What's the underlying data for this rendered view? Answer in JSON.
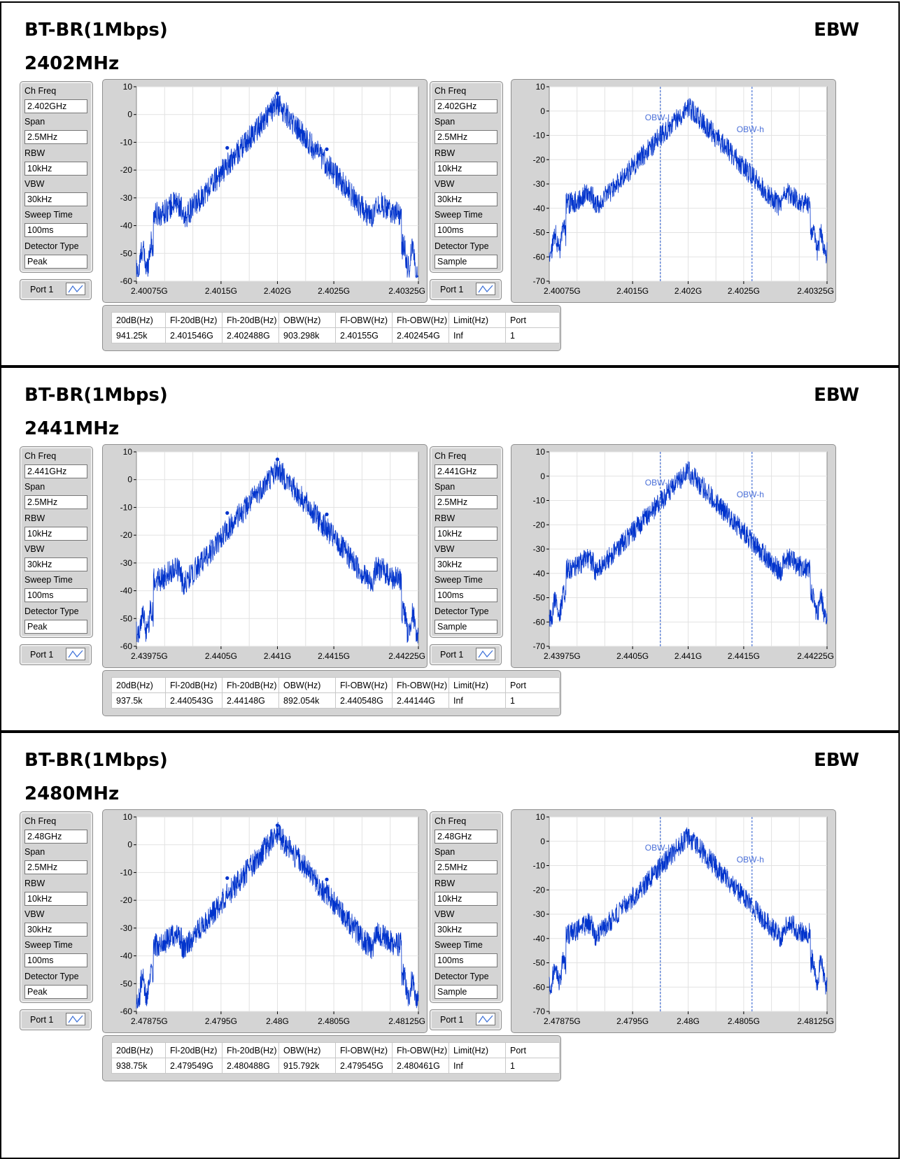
{
  "sections": [
    {
      "title": "BT-BR(1Mbps)",
      "ebw": "EBW",
      "freq_label": "2402MHz",
      "left_params": {
        "ch_freq_label": "Ch Freq",
        "ch_freq": "2.402GHz",
        "span_label": "Span",
        "span": "2.5MHz",
        "rbw_label": "RBW",
        "rbw": "10kHz",
        "vbw_label": "VBW",
        "vbw": "30kHz",
        "sweep_label": "Sweep Time",
        "sweep": "100ms",
        "det_label": "Detector Type",
        "det": "Peak"
      },
      "right_params": {
        "ch_freq_label": "Ch Freq",
        "ch_freq": "2.402GHz",
        "span_label": "Span",
        "span": "2.5MHz",
        "rbw_label": "RBW",
        "rbw": "10kHz",
        "vbw_label": "VBW",
        "vbw": "30kHz",
        "sweep_label": "Sweep Time",
        "sweep": "100ms",
        "det_label": "Detector Type",
        "det": "Sample"
      },
      "port_label": "Port 1",
      "table": {
        "headers": [
          "20dB(Hz)",
          "Fl-20dB(Hz)",
          "Fh-20dB(Hz)",
          "OBW(Hz)",
          "Fl-OBW(Hz)",
          "Fh-OBW(Hz)",
          "Limit(Hz)",
          "Port"
        ],
        "row": [
          "941.25k",
          "2.401546G",
          "2.402488G",
          "903.298k",
          "2.40155G",
          "2.402454G",
          "Inf",
          "1"
        ]
      }
    },
    {
      "title": "BT-BR(1Mbps)",
      "ebw": "EBW",
      "freq_label": "2441MHz",
      "left_params": {
        "ch_freq_label": "Ch Freq",
        "ch_freq": "2.441GHz",
        "span_label": "Span",
        "span": "2.5MHz",
        "rbw_label": "RBW",
        "rbw": "10kHz",
        "vbw_label": "VBW",
        "vbw": "30kHz",
        "sweep_label": "Sweep Time",
        "sweep": "100ms",
        "det_label": "Detector Type",
        "det": "Peak"
      },
      "right_params": {
        "ch_freq_label": "Ch Freq",
        "ch_freq": "2.441GHz",
        "span_label": "Span",
        "span": "2.5MHz",
        "rbw_label": "RBW",
        "rbw": "10kHz",
        "vbw_label": "VBW",
        "vbw": "30kHz",
        "sweep_label": "Sweep Time",
        "sweep": "100ms",
        "det_label": "Detector Type",
        "det": "Sample"
      },
      "port_label": "Port 1",
      "table": {
        "headers": [
          "20dB(Hz)",
          "Fl-20dB(Hz)",
          "Fh-20dB(Hz)",
          "OBW(Hz)",
          "Fl-OBW(Hz)",
          "Fh-OBW(Hz)",
          "Limit(Hz)",
          "Port"
        ],
        "row": [
          "937.5k",
          "2.440543G",
          "2.44148G",
          "892.054k",
          "2.440548G",
          "2.44144G",
          "Inf",
          "1"
        ]
      }
    },
    {
      "title": "BT-BR(1Mbps)",
      "ebw": "EBW",
      "freq_label": "2480MHz",
      "left_params": {
        "ch_freq_label": "Ch Freq",
        "ch_freq": "2.48GHz",
        "span_label": "Span",
        "span": "2.5MHz",
        "rbw_label": "RBW",
        "rbw": "10kHz",
        "vbw_label": "VBW",
        "vbw": "30kHz",
        "sweep_label": "Sweep Time",
        "sweep": "100ms",
        "det_label": "Detector Type",
        "det": "Peak"
      },
      "right_params": {
        "ch_freq_label": "Ch Freq",
        "ch_freq": "2.48GHz",
        "span_label": "Span",
        "span": "2.5MHz",
        "rbw_label": "RBW",
        "rbw": "10kHz",
        "vbw_label": "VBW",
        "vbw": "30kHz",
        "sweep_label": "Sweep Time",
        "sweep": "100ms",
        "det_label": "Detector Type",
        "det": "Sample"
      },
      "port_label": "Port 1",
      "table": {
        "headers": [
          "20dB(Hz)",
          "Fl-20dB(Hz)",
          "Fh-20dB(Hz)",
          "OBW(Hz)",
          "Fl-OBW(Hz)",
          "Fh-OBW(Hz)",
          "Limit(Hz)",
          "Port"
        ],
        "row": [
          "938.75k",
          "2.479549G",
          "2.480488G",
          "915.792k",
          "2.479545G",
          "2.480461G",
          "Inf",
          "1"
        ]
      }
    }
  ],
  "chart_data": [
    {
      "type": "line",
      "ylim": [
        -60,
        10
      ],
      "yticks": [
        10,
        0,
        -10,
        -20,
        -30,
        -40,
        -50,
        -60
      ],
      "xtick_labels": [
        "2.40075G",
        "2.4015G",
        "2.402G",
        "2.4025G",
        "2.40325G"
      ],
      "center_tick": "2.402G",
      "trace_color": "#0033cc",
      "peak_dBm": 7.6,
      "markers_dBm": [
        7.6,
        -11.6,
        -12.3
      ]
    },
    {
      "type": "line",
      "ylim": [
        -70,
        10
      ],
      "yticks": [
        10,
        0,
        -10,
        -20,
        -30,
        -40,
        -50,
        -60,
        -70
      ],
      "xtick_labels": [
        "2.40075G",
        "2.4015G",
        "2.402G",
        "2.4025G",
        "2.40325G"
      ],
      "obw_labels": [
        "OBW-l",
        "OBW-h"
      ],
      "obw_x": [
        "2.40155G",
        "2.402454G"
      ],
      "trace_color": "#0033cc"
    },
    {
      "type": "line",
      "ylim": [
        -60,
        10
      ],
      "yticks": [
        10,
        0,
        -10,
        -20,
        -30,
        -40,
        -50,
        -60
      ],
      "xtick_labels": [
        "2.43975G",
        "2.4405G",
        "2.441G",
        "2.4415G",
        "2.44225G"
      ],
      "center_tick": "2.441G",
      "trace_color": "#0033cc",
      "peak_dBm": 7.3
    },
    {
      "type": "line",
      "ylim": [
        -70,
        10
      ],
      "yticks": [
        10,
        0,
        -10,
        -20,
        -30,
        -40,
        -50,
        -60,
        -70
      ],
      "xtick_labels": [
        "2.43975G",
        "2.4405G",
        "2.441G",
        "2.4415G",
        "2.44225G"
      ],
      "obw_labels": [
        "OBW-l",
        "OBW-h"
      ],
      "obw_x": [
        "2.440548G",
        "2.44144G"
      ],
      "trace_color": "#0033cc"
    },
    {
      "type": "line",
      "ylim": [
        -60,
        10
      ],
      "yticks": [
        10,
        0,
        -10,
        -20,
        -30,
        -40,
        -50,
        -60
      ],
      "xtick_labels": [
        "2.47875G",
        "2.4795G",
        "2.48G",
        "2.4805G",
        "2.48125G"
      ],
      "center_tick": "2.48G",
      "trace_color": "#0033cc",
      "peak_dBm": 7.0
    },
    {
      "type": "line",
      "ylim": [
        -70,
        10
      ],
      "yticks": [
        10,
        0,
        -10,
        -20,
        -30,
        -40,
        -50,
        -60,
        -70
      ],
      "xtick_labels": [
        "2.47875G",
        "2.4795G",
        "2.48G",
        "2.4805G",
        "2.48125G"
      ],
      "obw_labels": [
        "OBW-l",
        "OBW-h"
      ],
      "obw_x": [
        "2.479545G",
        "2.480461G"
      ],
      "trace_color": "#0033cc"
    }
  ]
}
